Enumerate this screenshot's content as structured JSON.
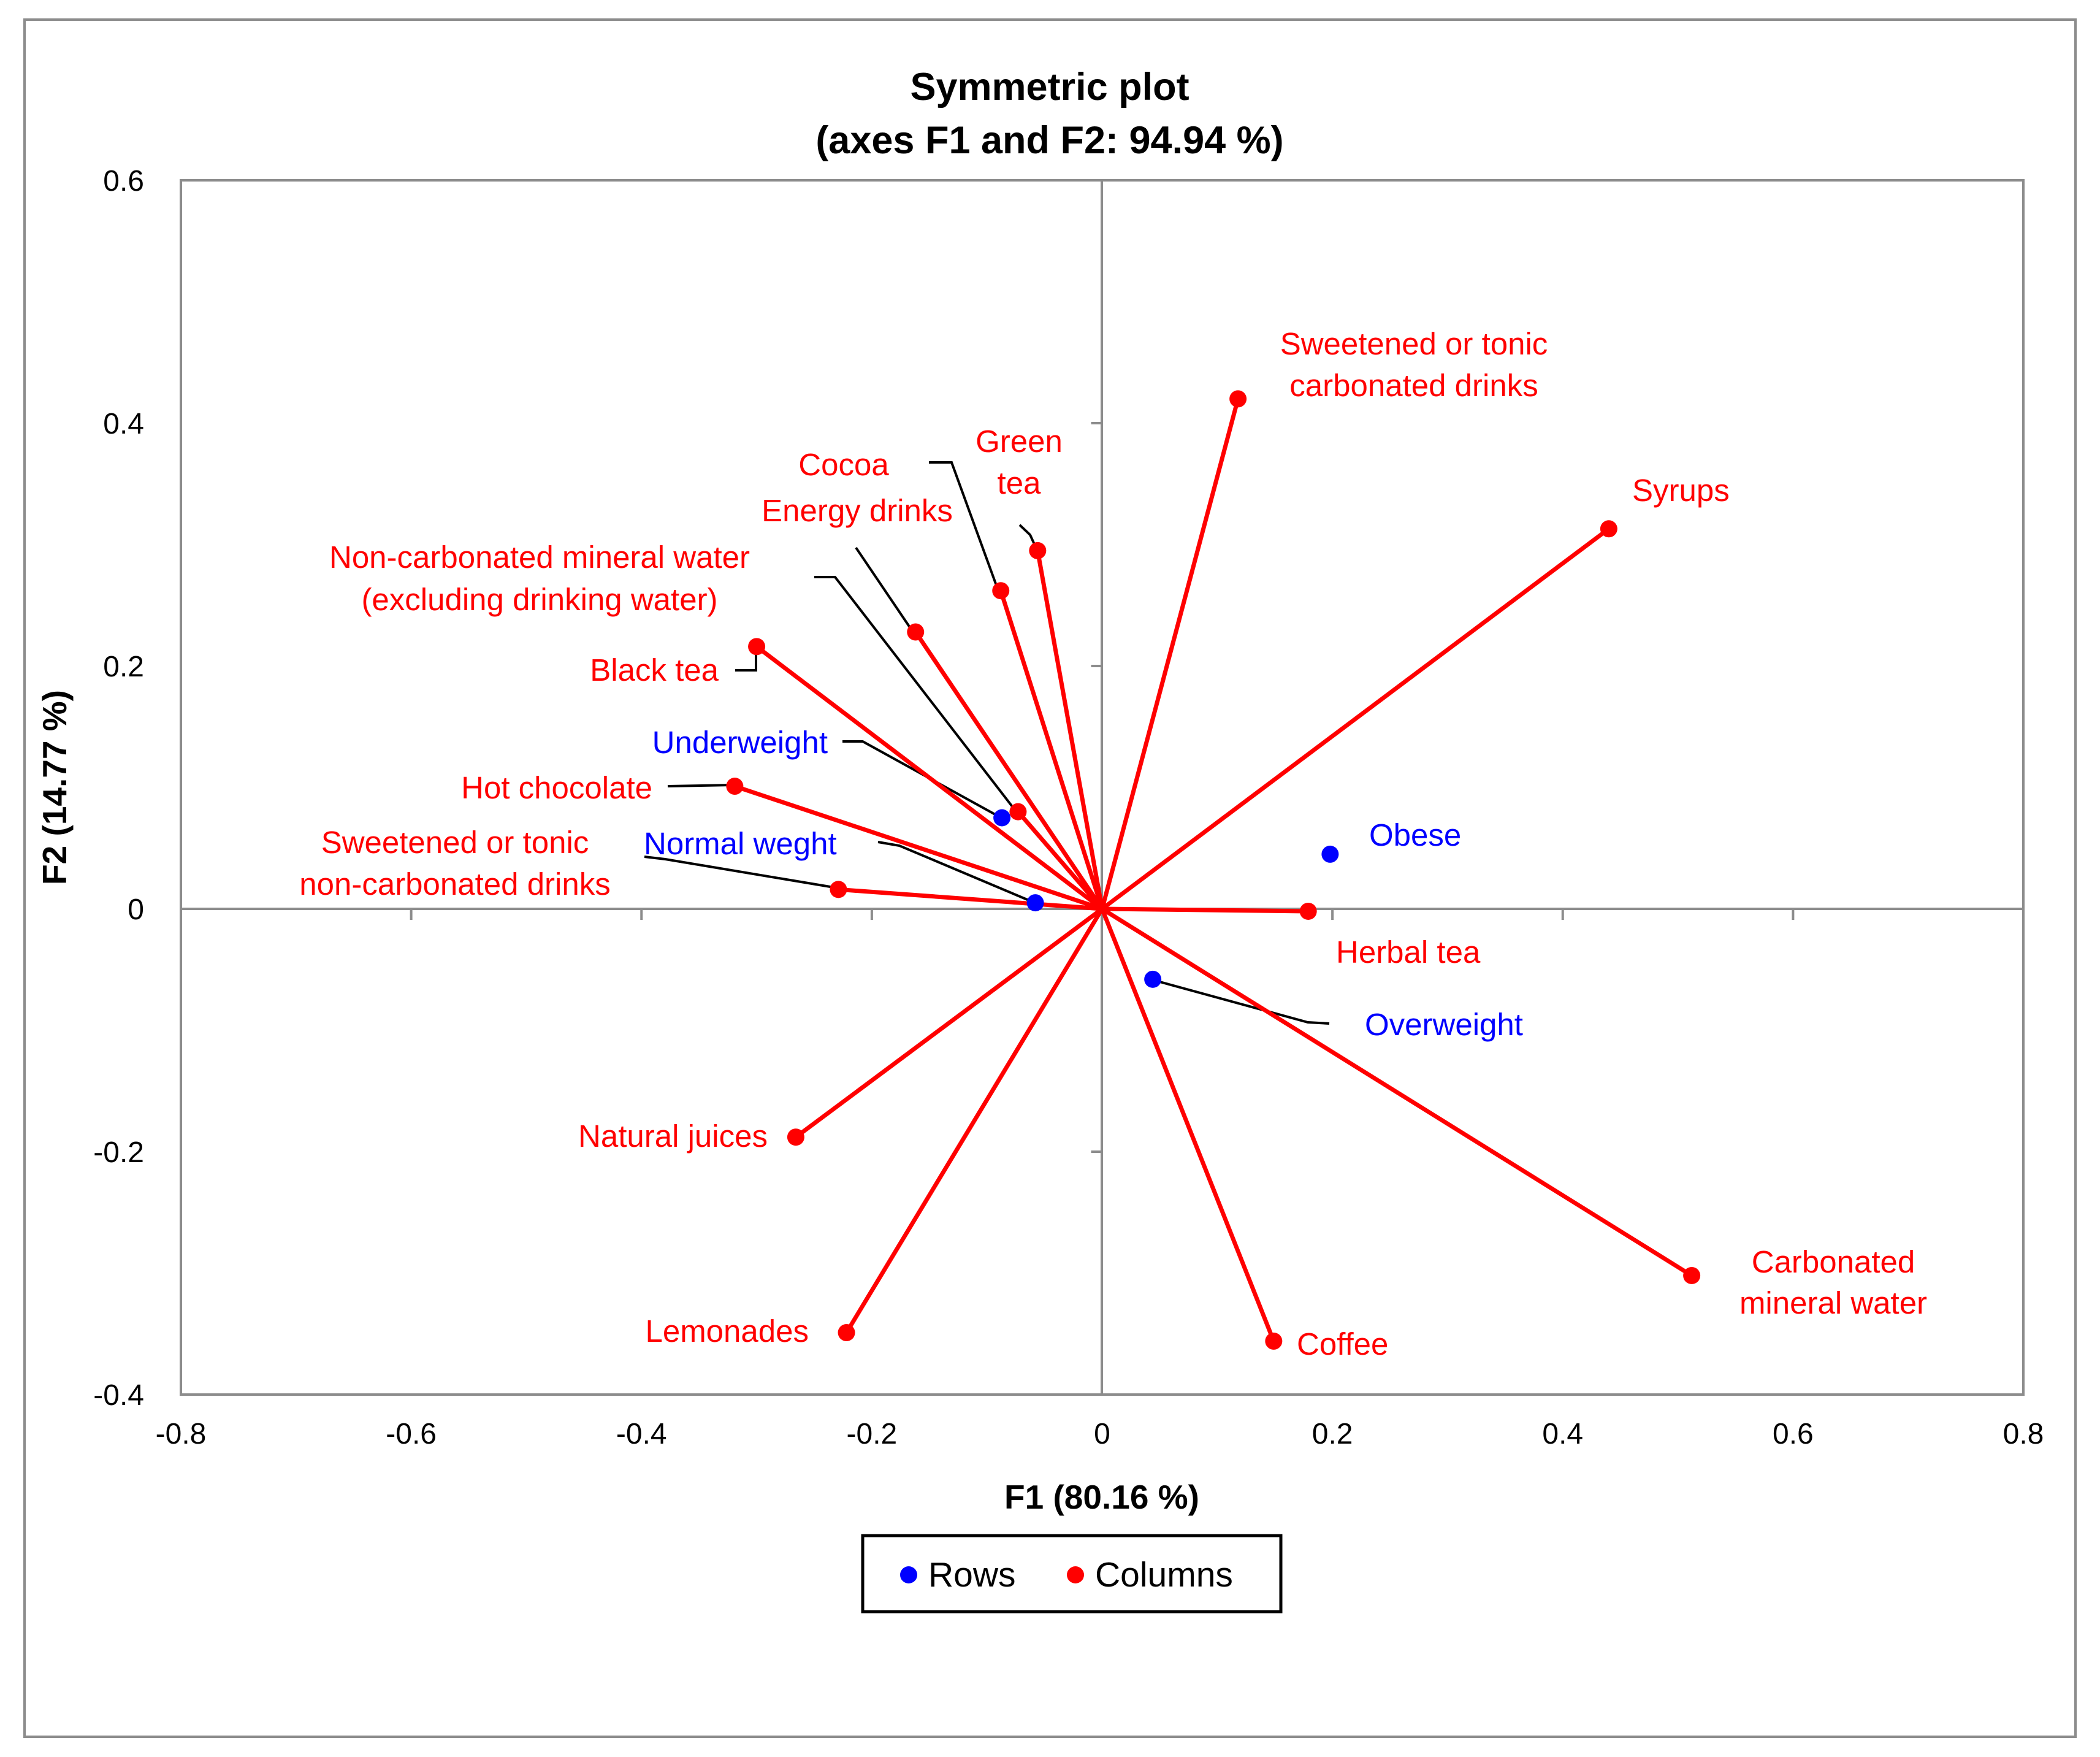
{
  "chart_data": {
    "type": "scatter",
    "title": "Symmetric plot",
    "subtitle": "(axes F1 and F2: 94.94 %)",
    "xlabel": "F1 (80.16 %)",
    "ylabel": "F2 (14.77 %)",
    "xlim": [
      -0.8,
      0.8
    ],
    "ylim": [
      -0.4,
      0.6
    ],
    "x_ticks": [
      -0.8,
      -0.6,
      -0.4,
      -0.2,
      0,
      0.2,
      0.4,
      0.6,
      0.8
    ],
    "x_tick_labels": [
      "-0.8",
      "-0.6",
      "-0.4",
      "-0.2",
      "0",
      "0.2",
      "0.4",
      "0.6",
      "0.8"
    ],
    "y_ticks": [
      -0.4,
      -0.2,
      0,
      0.2,
      0.4,
      0.6
    ],
    "y_tick_labels": [
      "-0.4",
      "-0.2",
      "0",
      "0.2",
      "0.4",
      "0.6"
    ],
    "grid": false,
    "legend_position": "bottom",
    "series": [
      {
        "name": "Rows",
        "color": "#0000ff",
        "points": [
          {
            "label": "Underweight",
            "x": -0.087,
            "y": 0.075
          },
          {
            "label": "Normal weght",
            "x": -0.058,
            "y": 0.005
          },
          {
            "label": "Obese",
            "x": 0.198,
            "y": 0.045
          },
          {
            "label": "Overweight",
            "x": 0.044,
            "y": -0.058
          }
        ]
      },
      {
        "name": "Columns",
        "color": "#ff0000",
        "points": [
          {
            "label": "Sweetened or tonic carbonated drinks",
            "x": 0.118,
            "y": 0.42
          },
          {
            "label": "Syrups",
            "x": 0.44,
            "y": 0.313
          },
          {
            "label": "Green tea",
            "x": -0.056,
            "y": 0.295
          },
          {
            "label": "Cocoa",
            "x": -0.088,
            "y": 0.262
          },
          {
            "label": "Energy drinks",
            "x": -0.162,
            "y": 0.228
          },
          {
            "label": "Non-carbonated mineral water (excluding drinking water)",
            "x": -0.073,
            "y": 0.08
          },
          {
            "label": "Black tea",
            "x": -0.3,
            "y": 0.216
          },
          {
            "label": "Hot chocolate",
            "x": -0.319,
            "y": 0.101
          },
          {
            "label": "Sweetened or tonic non-carbonated drinks",
            "x": -0.229,
            "y": 0.016
          },
          {
            "label": "Herbal tea",
            "x": 0.179,
            "y": -0.002
          },
          {
            "label": "Natural juices",
            "x": -0.266,
            "y": -0.188
          },
          {
            "label": "Lemonades",
            "x": -0.222,
            "y": -0.349
          },
          {
            "label": "Coffee",
            "x": 0.149,
            "y": -0.356
          },
          {
            "label": "Carbonated mineral water",
            "x": 0.512,
            "y": -0.302
          }
        ]
      }
    ]
  },
  "labels": {
    "sweet_carb_1": "Sweetened or tonic",
    "sweet_carb_2": "carbonated drinks",
    "syrups": "Syrups",
    "green_tea_1": "Green",
    "green_tea_2": "tea",
    "cocoa": "Cocoa",
    "energy": "Energy drinks",
    "noncarb_water_1": "Non-carbonated mineral water",
    "noncarb_water_2": "(excluding drinking water)",
    "black_tea": "Black tea",
    "underweight": "Underweight",
    "hot_choc": "Hot chocolate",
    "sweet_noncarb_1": "Sweetened or tonic",
    "sweet_noncarb_2": "non-carbonated drinks",
    "normal": "Normal weght",
    "obese": "Obese",
    "herbal": "Herbal tea",
    "overweight": "Overweight",
    "juices": "Natural juices",
    "lemonades": "Lemonades",
    "coffee": "Coffee",
    "carb_water_1": "Carbonated",
    "carb_water_2": "mineral water"
  },
  "legend": {
    "rows": "Rows",
    "columns": "Columns"
  }
}
